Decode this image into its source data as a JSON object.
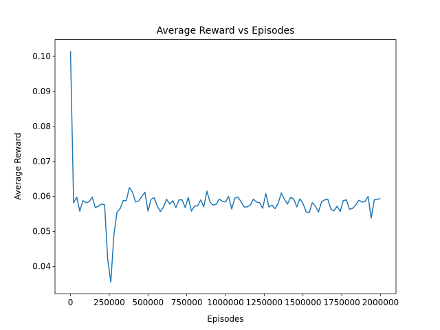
{
  "chart_data": {
    "type": "line",
    "title": "Average Reward vs Episodes",
    "xlabel": "Episodes",
    "ylabel": "Average Reward",
    "x": [
      0,
      20000,
      40000,
      60000,
      80000,
      100000,
      120000,
      140000,
      160000,
      180000,
      200000,
      220000,
      240000,
      260000,
      280000,
      300000,
      320000,
      340000,
      360000,
      380000,
      400000,
      420000,
      440000,
      460000,
      480000,
      500000,
      520000,
      540000,
      560000,
      580000,
      600000,
      620000,
      640000,
      660000,
      680000,
      700000,
      720000,
      740000,
      760000,
      780000,
      800000,
      820000,
      840000,
      860000,
      880000,
      900000,
      920000,
      940000,
      960000,
      980000,
      1000000,
      1020000,
      1040000,
      1060000,
      1080000,
      1100000,
      1120000,
      1140000,
      1160000,
      1180000,
      1200000,
      1220000,
      1240000,
      1260000,
      1280000,
      1300000,
      1320000,
      1340000,
      1360000,
      1380000,
      1400000,
      1420000,
      1440000,
      1460000,
      1480000,
      1500000,
      1520000,
      1540000,
      1560000,
      1580000,
      1600000,
      1620000,
      1640000,
      1660000,
      1680000,
      1700000,
      1720000,
      1740000,
      1760000,
      1780000,
      1800000,
      1820000,
      1840000,
      1860000,
      1880000,
      1900000,
      1920000,
      1940000,
      1960000,
      1980000,
      2000000
    ],
    "series": [
      {
        "name": "Average Reward",
        "color": "#1f77b4",
        "values": [
          0.1015,
          0.0582,
          0.0598,
          0.0558,
          0.0588,
          0.0582,
          0.0585,
          0.0598,
          0.0568,
          0.0572,
          0.0578,
          0.0576,
          0.042,
          0.0355,
          0.049,
          0.0555,
          0.0565,
          0.0588,
          0.0588,
          0.0625,
          0.0612,
          0.0584,
          0.0587,
          0.06,
          0.0612,
          0.0558,
          0.0592,
          0.0596,
          0.0572,
          0.0557,
          0.057,
          0.0592,
          0.0578,
          0.0588,
          0.0568,
          0.059,
          0.059,
          0.0568,
          0.0597,
          0.0558,
          0.0572,
          0.0573,
          0.059,
          0.057,
          0.0615,
          0.0584,
          0.0575,
          0.0578,
          0.0592,
          0.0586,
          0.0584,
          0.06,
          0.0564,
          0.0595,
          0.0598,
          0.0585,
          0.057,
          0.057,
          0.0575,
          0.0592,
          0.0584,
          0.0582,
          0.0566,
          0.0608,
          0.057,
          0.0575,
          0.0565,
          0.058,
          0.061,
          0.0592,
          0.0578,
          0.0597,
          0.0593,
          0.057,
          0.0593,
          0.058,
          0.0556,
          0.0553,
          0.0582,
          0.0572,
          0.0555,
          0.0585,
          0.059,
          0.0592,
          0.0563,
          0.0559,
          0.0572,
          0.0557,
          0.0588,
          0.059,
          0.0563,
          0.0566,
          0.0575,
          0.0589,
          0.0584,
          0.0585,
          0.06,
          0.0538,
          0.059,
          0.0592,
          0.0593
        ]
      }
    ],
    "xlim": [
      -100000,
      2100000
    ],
    "xticks": [
      0,
      250000,
      500000,
      750000,
      1000000,
      1250000,
      1500000,
      1750000,
      2000000
    ],
    "ylim": [
      0.0322,
      0.1048
    ],
    "yticks": [
      0.04,
      0.05,
      0.06,
      0.07,
      0.08,
      0.09,
      {
        "value": 0.1,
        "label": "0.10"
      }
    ]
  }
}
